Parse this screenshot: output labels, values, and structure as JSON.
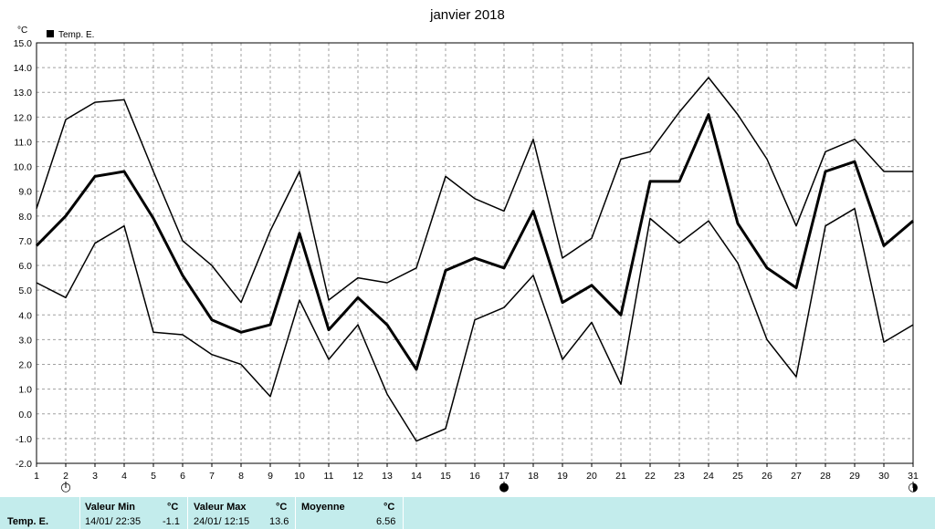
{
  "chart_data": {
    "type": "line",
    "title": "janvier 2018",
    "y_unit": "°C",
    "legend": "Temp. E.",
    "legend_position": "top-left",
    "grid": true,
    "x": [
      1,
      2,
      3,
      4,
      5,
      6,
      7,
      8,
      9,
      10,
      11,
      12,
      13,
      14,
      15,
      16,
      17,
      18,
      19,
      20,
      21,
      22,
      23,
      24,
      25,
      26,
      27,
      28,
      29,
      30,
      31
    ],
    "ylim": [
      -2.0,
      15.0
    ],
    "yticks": [
      "15.0",
      "14.0",
      "13.0",
      "12.0",
      "11.0",
      "10.0",
      "9.0",
      "8.0",
      "7.0",
      "6.0",
      "5.0",
      "4.0",
      "3.0",
      "2.0",
      "1.0",
      "0.0",
      "-1.0",
      "-2.0"
    ],
    "series": [
      {
        "values": [
          8.3,
          11.9,
          12.6,
          12.7,
          9.8,
          7.0,
          6.0,
          4.5,
          7.4,
          9.8,
          4.6,
          5.5,
          5.3,
          5.9,
          9.6,
          8.7,
          8.2,
          11.1,
          6.3,
          7.1,
          10.3,
          10.6,
          12.2,
          13.6,
          12.1,
          10.3,
          7.6,
          10.6,
          11.1,
          9.8,
          9.8
        ]
      },
      {
        "values": [
          6.8,
          8.0,
          9.6,
          9.8,
          7.9,
          5.6,
          3.8,
          3.3,
          3.6,
          7.3,
          3.4,
          4.7,
          3.6,
          1.8,
          5.8,
          6.3,
          5.9,
          8.2,
          4.5,
          5.2,
          4.0,
          9.4,
          9.4,
          12.1,
          7.7,
          5.9,
          5.1,
          9.8,
          10.2,
          6.8,
          7.8
        ]
      },
      {
        "values": [
          5.3,
          4.7,
          6.9,
          7.6,
          3.3,
          3.2,
          2.4,
          2.0,
          0.7,
          4.6,
          2.2,
          3.6,
          0.8,
          -1.1,
          -0.6,
          3.8,
          4.3,
          5.6,
          2.2,
          3.7,
          1.2,
          7.9,
          6.9,
          7.8,
          6.1,
          3.0,
          1.5,
          7.6,
          8.3,
          2.9,
          3.6
        ]
      }
    ],
    "moon_phases": [
      {
        "day": 2,
        "symbol": "○"
      },
      {
        "day": 17,
        "symbol": "●"
      },
      {
        "day": 31,
        "symbol": "◑"
      }
    ]
  },
  "footer": {
    "row_label": "Temp. E.",
    "min": {
      "header": "Valeur Min",
      "unit": "°C",
      "datetime": "14/01/  22:35",
      "value": "-1.1"
    },
    "max": {
      "header": "Valeur Max",
      "unit": "°C",
      "datetime": "24/01/  12:15",
      "value": "13.6"
    },
    "avg": {
      "header": "Moyenne",
      "unit": "°C",
      "value": "6.56"
    }
  },
  "colors": {
    "line": "#000000",
    "grid": "#a0a0a0",
    "footer_bg": "#c3ecec"
  }
}
